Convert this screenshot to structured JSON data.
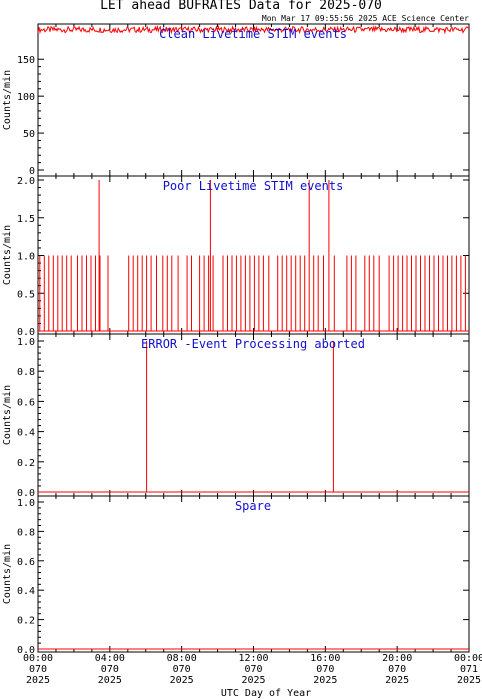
{
  "title": "LET ahead BUFRATES Data for 2025-070",
  "timestamp": "Mon Mar 17 09:55:56 2025 ACE Science Center",
  "x_axis_label": "UTC Day of Year",
  "x_ticks": [
    {
      "hours": 0,
      "time": "00:00",
      "doy": "070",
      "year": "2025"
    },
    {
      "hours": 4,
      "time": "04:00",
      "doy": "070",
      "year": "2025"
    },
    {
      "hours": 8,
      "time": "08:00",
      "doy": "070",
      "year": "2025"
    },
    {
      "hours": 12,
      "time": "12:00",
      "doy": "070",
      "year": "2025"
    },
    {
      "hours": 16,
      "time": "16:00",
      "doy": "070",
      "year": "2025"
    },
    {
      "hours": 20,
      "time": "20:00",
      "doy": "070",
      "year": "2025"
    },
    {
      "hours": 24,
      "time": "00:00",
      "doy": "071",
      "year": "2025"
    }
  ],
  "colors": {
    "series": "#ff0000",
    "panel_label": "#1010d0",
    "axes": "#000000"
  },
  "chart_data": [
    {
      "type": "line",
      "title": "Clean Livetime STIM events",
      "ylabel": "Counts/min",
      "ylim": [
        0,
        195
      ],
      "yticks": [
        0,
        50,
        100,
        150
      ],
      "xlim": [
        0,
        24
      ],
      "baseline": 190,
      "jitter": [
        186,
        194
      ],
      "spikes": []
    },
    {
      "type": "line",
      "title": "Poor Livetime STIM events",
      "ylabel": "Counts/min",
      "ylim": [
        0,
        2
      ],
      "yticks": [
        0.0,
        0.5,
        1.0,
        1.5,
        2.0
      ],
      "xlim": [
        0,
        24
      ],
      "baseline": 0,
      "ones_hours": [
        0.1,
        0.35,
        0.6,
        0.85,
        1.1,
        1.35,
        1.6,
        1.85,
        2.2,
        2.45,
        2.7,
        2.95,
        3.2,
        3.45,
        3.9,
        5.05,
        5.3,
        5.55,
        5.8,
        6.05,
        6.3,
        6.6,
        6.95,
        7.2,
        7.45,
        7.8,
        8.3,
        8.55,
        9.0,
        9.25,
        9.5,
        9.75,
        10.3,
        10.55,
        10.8,
        11.05,
        11.3,
        11.55,
        11.8,
        12.05,
        12.3,
        12.55,
        12.85,
        13.35,
        13.6,
        13.85,
        14.1,
        14.35,
        14.6,
        14.85,
        15.1,
        15.35,
        15.6,
        15.9,
        16.5,
        17.2,
        17.45,
        17.7,
        18.2,
        18.45,
        18.7,
        19.0,
        19.55,
        19.8,
        20.05,
        20.3,
        20.55,
        20.8,
        21.05,
        21.3,
        21.55,
        21.8,
        22.05,
        22.3,
        22.55,
        22.8,
        23.05,
        23.3,
        23.55,
        23.8
      ],
      "spikes": [
        {
          "hours": 3.4,
          "value": 2
        },
        {
          "hours": 9.6,
          "value": 2
        },
        {
          "hours": 15.1,
          "value": 2
        },
        {
          "hours": 16.2,
          "value": 2
        }
      ]
    },
    {
      "type": "line",
      "title": "ERROR -Event Processing aborted",
      "ylabel": "Counts/min",
      "ylim": [
        0,
        1
      ],
      "yticks": [
        0.0,
        0.2,
        0.4,
        0.6,
        0.8,
        1.0
      ],
      "xlim": [
        0,
        24
      ],
      "baseline": 0,
      "spikes": [
        {
          "hours": 6.05,
          "value": 1
        },
        {
          "hours": 16.45,
          "value": 1
        }
      ]
    },
    {
      "type": "line",
      "title": "Spare",
      "ylabel": "Counts/min",
      "ylim": [
        0,
        1
      ],
      "yticks": [
        0.0,
        0.2,
        0.4,
        0.6,
        0.8,
        1.0
      ],
      "xlim": [
        0,
        24
      ],
      "baseline": 0,
      "spikes": []
    }
  ]
}
